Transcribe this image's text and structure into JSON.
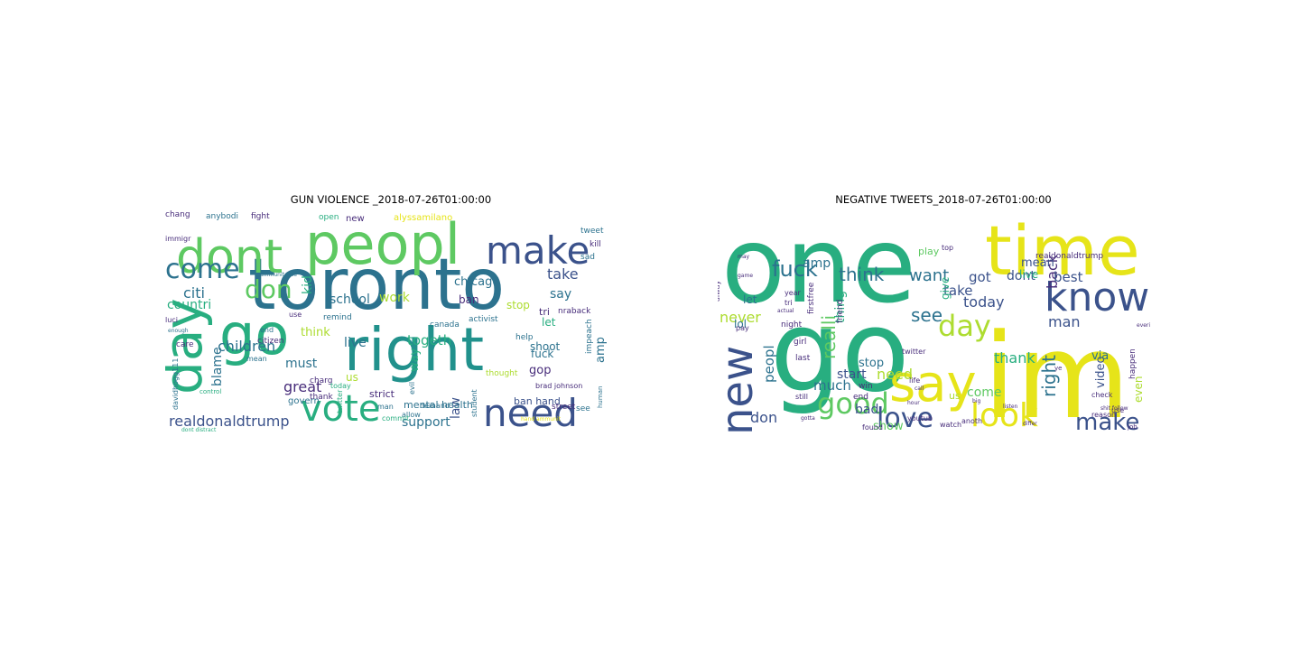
{
  "colors": {
    "purple": "#472c7a",
    "indigo": "#3b528b",
    "blue": "#2c728e",
    "teal": "#21918c",
    "green": "#28ae80",
    "lightgreen": "#5ec962",
    "lime": "#addc30",
    "yellow": "#e6e419"
  },
  "chart_data": [
    {
      "type": "wordcloud",
      "title": "GUN VIOLENCE _2018-07-26T01:00:00",
      "words": [
        {
          "text": "toronto",
          "weight": 100,
          "color": "blue"
        },
        {
          "text": "right",
          "weight": 78,
          "color": "teal"
        },
        {
          "text": "go",
          "weight": 62,
          "color": "green"
        },
        {
          "text": "peopl",
          "weight": 60,
          "color": "lightgreen"
        },
        {
          "text": "dont",
          "weight": 56,
          "color": "lightgreen"
        },
        {
          "text": "day",
          "weight": 52,
          "color": "green"
        },
        {
          "text": "make",
          "weight": 48,
          "color": "indigo"
        },
        {
          "text": "need",
          "weight": 46,
          "color": "indigo"
        },
        {
          "text": "vote",
          "weight": 44,
          "color": "green"
        },
        {
          "text": "come",
          "weight": 34,
          "color": "blue"
        },
        {
          "text": "don",
          "weight": 30,
          "color": "lightgreen"
        },
        {
          "text": "realdonaldtrump",
          "weight": 20,
          "color": "indigo"
        },
        {
          "text": "support",
          "weight": 18,
          "color": "blue"
        },
        {
          "text": "children",
          "weight": 18,
          "color": "blue"
        },
        {
          "text": "school",
          "weight": 16,
          "color": "blue"
        },
        {
          "text": "take",
          "weight": 16,
          "color": "indigo"
        },
        {
          "text": "say",
          "weight": 16,
          "color": "blue"
        },
        {
          "text": "citi",
          "weight": 15,
          "color": "blue"
        },
        {
          "text": "countri",
          "weight": 15,
          "color": "green"
        },
        {
          "text": "work",
          "weight": 14,
          "color": "lime"
        },
        {
          "text": "chicago",
          "weight": 14,
          "color": "blue"
        },
        {
          "text": "blame",
          "weight": 14,
          "color": "blue"
        },
        {
          "text": "kid",
          "weight": 14,
          "color": "green"
        },
        {
          "text": "live",
          "weight": 14,
          "color": "blue"
        },
        {
          "text": "think",
          "weight": 14,
          "color": "lime"
        },
        {
          "text": "togeth",
          "weight": 14,
          "color": "green"
        },
        {
          "text": "great",
          "weight": 14,
          "color": "purple"
        },
        {
          "text": "must",
          "weight": 13,
          "color": "blue"
        },
        {
          "text": "gop",
          "weight": 13,
          "color": "purple"
        },
        {
          "text": "way",
          "weight": 13,
          "color": "green"
        },
        {
          "text": "fuck",
          "weight": 12,
          "color": "blue"
        },
        {
          "text": "law",
          "weight": 13,
          "color": "indigo"
        },
        {
          "text": "amp",
          "weight": 13,
          "color": "blue"
        },
        {
          "text": "shoot",
          "weight": 12,
          "color": "blue"
        },
        {
          "text": "ban hand",
          "weight": 11,
          "color": "indigo"
        },
        {
          "text": "mental health",
          "weight": 11,
          "color": "blue"
        },
        {
          "text": "stop",
          "weight": 12,
          "color": "lime"
        },
        {
          "text": "ban",
          "weight": 12,
          "color": "purple"
        },
        {
          "text": "let",
          "weight": 12,
          "color": "green"
        },
        {
          "text": "tri",
          "weight": 11,
          "color": "purple"
        },
        {
          "text": "us",
          "weight": 12,
          "color": "lime"
        },
        {
          "text": "strict",
          "weight": 11,
          "color": "purple"
        },
        {
          "text": "govern",
          "weight": 10,
          "color": "blue"
        },
        {
          "text": "alyssamilano",
          "weight": 10,
          "color": "yellow"
        },
        {
          "text": "new",
          "weight": 10,
          "color": "purple"
        },
        {
          "text": "open",
          "weight": 9,
          "color": "green"
        },
        {
          "text": "anybodi",
          "weight": 9,
          "color": "blue"
        },
        {
          "text": "fight",
          "weight": 9,
          "color": "purple"
        },
        {
          "text": "chang",
          "weight": 9,
          "color": "purple"
        },
        {
          "text": "tweet",
          "weight": 9,
          "color": "blue"
        },
        {
          "text": "kill",
          "weight": 9,
          "color": "purple"
        },
        {
          "text": "sad",
          "weight": 9,
          "color": "blue"
        },
        {
          "text": "nraback",
          "weight": 9,
          "color": "purple"
        },
        {
          "text": "canada",
          "weight": 9,
          "color": "blue"
        },
        {
          "text": "activist",
          "weight": 9,
          "color": "blue"
        },
        {
          "text": "remind",
          "weight": 9,
          "color": "blue"
        },
        {
          "text": "help",
          "weight": 9,
          "color": "blue"
        },
        {
          "text": "impeach",
          "weight": 9,
          "color": "blue"
        },
        {
          "text": "thought",
          "weight": 9,
          "color": "lime"
        },
        {
          "text": "brad johnson",
          "weight": 8,
          "color": "purple"
        },
        {
          "text": "see",
          "weight": 9,
          "color": "blue"
        },
        {
          "text": "street",
          "weight": 9,
          "color": "purple"
        },
        {
          "text": "student",
          "weight": 8,
          "color": "blue"
        },
        {
          "text": "allow",
          "weight": 8,
          "color": "blue"
        },
        {
          "text": "demand",
          "weight": 8,
          "color": "blue"
        },
        {
          "text": "evil",
          "weight": 8,
          "color": "blue"
        },
        {
          "text": "charg",
          "weight": 9,
          "color": "purple"
        },
        {
          "text": "thank",
          "weight": 9,
          "color": "purple"
        },
        {
          "text": "citizen",
          "weight": 9,
          "color": "purple"
        },
        {
          "text": "care",
          "weight": 9,
          "color": "purple"
        },
        {
          "text": "mean",
          "weight": 8,
          "color": "blue"
        },
        {
          "text": "end",
          "weight": 8,
          "color": "blue"
        },
        {
          "text": "use",
          "weight": 8,
          "color": "purple"
        },
        {
          "text": "luci",
          "weight": 8,
          "color": "purple"
        },
        {
          "text": "immigr",
          "weight": 8,
          "color": "purple"
        },
        {
          "text": "davidhogg111",
          "weight": 8,
          "color": "blue"
        },
        {
          "text": "twitter",
          "weight": 8,
          "color": "green"
        },
        {
          "text": "today",
          "weight": 8,
          "color": "green"
        },
        {
          "text": "commit",
          "weight": 8,
          "color": "green"
        },
        {
          "text": "man",
          "weight": 8,
          "color": "blue"
        },
        {
          "text": "dont distract",
          "weight": 6,
          "color": "green"
        },
        {
          "text": "hand ammunit",
          "weight": 6,
          "color": "yellow"
        },
        {
          "text": "human",
          "weight": 7,
          "color": "blue"
        },
        {
          "text": "control",
          "weight": 7,
          "color": "green"
        },
        {
          "text": "ammunit sale",
          "weight": 6,
          "color": "blue"
        },
        {
          "text": "enough",
          "weight": 6,
          "color": "blue"
        },
        {
          "text": "know",
          "weight": 6,
          "color": "lime"
        }
      ]
    },
    {
      "type": "wordcloud",
      "title": "NEGATIVE TWEETS_2018-07-26T01:00:00",
      "words": [
        {
          "text": "one",
          "weight": 100,
          "color": "green"
        },
        {
          "text": "im",
          "weight": 96,
          "color": "yellow"
        },
        {
          "text": "go",
          "weight": 88,
          "color": "green"
        },
        {
          "text": "time",
          "weight": 70,
          "color": "yellow"
        },
        {
          "text": "say",
          "weight": 52,
          "color": "yellow"
        },
        {
          "text": "know",
          "weight": 40,
          "color": "indigo"
        },
        {
          "text": "new",
          "weight": 40,
          "color": "indigo"
        },
        {
          "text": "look",
          "weight": 34,
          "color": "yellow"
        },
        {
          "text": "day",
          "weight": 32,
          "color": "lime"
        },
        {
          "text": "good",
          "weight": 30,
          "color": "lightgreen"
        },
        {
          "text": "love",
          "weight": 30,
          "color": "indigo"
        },
        {
          "text": "make",
          "weight": 26,
          "color": "indigo"
        },
        {
          "text": "fuck",
          "weight": 20,
          "color": "blue"
        },
        {
          "text": "think",
          "weight": 18,
          "color": "blue"
        },
        {
          "text": "want",
          "weight": 16,
          "color": "blue"
        },
        {
          "text": "see",
          "weight": 18,
          "color": "blue"
        },
        {
          "text": "right",
          "weight": 18,
          "color": "blue"
        },
        {
          "text": "realli",
          "weight": 16,
          "color": "lightgreen"
        },
        {
          "text": "man",
          "weight": 16,
          "color": "indigo"
        },
        {
          "text": "don",
          "weight": 16,
          "color": "indigo"
        },
        {
          "text": "need",
          "weight": 15,
          "color": "lime"
        },
        {
          "text": "today",
          "weight": 14,
          "color": "indigo"
        },
        {
          "text": "thank",
          "weight": 15,
          "color": "green"
        },
        {
          "text": "back",
          "weight": 14,
          "color": "purple"
        },
        {
          "text": "take",
          "weight": 14,
          "color": "indigo"
        },
        {
          "text": "got",
          "weight": 14,
          "color": "indigo"
        },
        {
          "text": "best",
          "weight": 14,
          "color": "indigo"
        },
        {
          "text": "mean",
          "weight": 13,
          "color": "indigo"
        },
        {
          "text": "dont",
          "weight": 13,
          "color": "indigo"
        },
        {
          "text": "amp",
          "weight": 12,
          "color": "blue"
        },
        {
          "text": "thing",
          "weight": 12,
          "color": "green"
        },
        {
          "text": "never",
          "weight": 13,
          "color": "lime"
        },
        {
          "text": "peopl",
          "weight": 13,
          "color": "blue"
        },
        {
          "text": "much",
          "weight": 13,
          "color": "blue"
        },
        {
          "text": "start",
          "weight": 13,
          "color": "indigo"
        },
        {
          "text": "show",
          "weight": 12,
          "color": "lightgreen"
        },
        {
          "text": "come",
          "weight": 12,
          "color": "lightgreen"
        },
        {
          "text": "stop",
          "weight": 12,
          "color": "blue"
        },
        {
          "text": "bad",
          "weight": 12,
          "color": "indigo"
        },
        {
          "text": "video",
          "weight": 12,
          "color": "indigo"
        },
        {
          "text": "via",
          "weight": 12,
          "color": "blue"
        },
        {
          "text": "even",
          "weight": 11,
          "color": "lime"
        },
        {
          "text": "live",
          "weight": 11,
          "color": "green"
        },
        {
          "text": "give",
          "weight": 11,
          "color": "green"
        },
        {
          "text": "let",
          "weight": 11,
          "color": "blue"
        },
        {
          "text": "lol",
          "weight": 11,
          "color": "blue"
        },
        {
          "text": "play",
          "weight": 10,
          "color": "lightgreen"
        },
        {
          "text": "us",
          "weight": 10,
          "color": "lime"
        },
        {
          "text": "firstfree",
          "weight": 8,
          "color": "purple"
        },
        {
          "text": "friend",
          "weight": 8,
          "color": "purple"
        },
        {
          "text": "realdonaldtrump",
          "weight": 8,
          "color": "purple"
        },
        {
          "text": "happen",
          "weight": 8,
          "color": "purple"
        },
        {
          "text": "check",
          "weight": 8,
          "color": "purple"
        },
        {
          "text": "reason",
          "weight": 8,
          "color": "purple"
        },
        {
          "text": "anoth",
          "weight": 8,
          "color": "purple"
        },
        {
          "text": "watch",
          "weight": 8,
          "color": "purple"
        },
        {
          "text": "found",
          "weight": 8,
          "color": "purple"
        },
        {
          "text": "youtub",
          "weight": 8,
          "color": "purple"
        },
        {
          "text": "twitter",
          "weight": 8,
          "color": "purple"
        },
        {
          "text": "win",
          "weight": 8,
          "color": "purple"
        },
        {
          "text": "end",
          "weight": 8,
          "color": "purple"
        },
        {
          "text": "last",
          "weight": 8,
          "color": "purple"
        },
        {
          "text": "girl",
          "weight": 8,
          "color": "purple"
        },
        {
          "text": "night",
          "weight": 8,
          "color": "purple"
        },
        {
          "text": "pay",
          "weight": 8,
          "color": "purple"
        },
        {
          "text": "alway",
          "weight": 8,
          "color": "purple"
        },
        {
          "text": "year",
          "weight": 7,
          "color": "purple"
        },
        {
          "text": "tri",
          "weight": 7,
          "color": "purple"
        },
        {
          "text": "still",
          "weight": 7,
          "color": "purple"
        },
        {
          "text": "life",
          "weight": 7,
          "color": "purple"
        },
        {
          "text": "top",
          "weight": 7,
          "color": "purple"
        },
        {
          "text": "use",
          "weight": 7,
          "color": "purple"
        },
        {
          "text": "job",
          "weight": 6,
          "color": "purple"
        },
        {
          "text": "differ",
          "weight": 6,
          "color": "purple"
        },
        {
          "text": "ye",
          "weight": 6,
          "color": "purple"
        },
        {
          "text": "shit follow",
          "weight": 6,
          "color": "purple"
        },
        {
          "text": "everi",
          "weight": 6,
          "color": "purple"
        },
        {
          "text": "actual",
          "weight": 6,
          "color": "purple"
        },
        {
          "text": "may",
          "weight": 6,
          "color": "purple"
        },
        {
          "text": "big",
          "weight": 6,
          "color": "purple"
        },
        {
          "text": "game",
          "weight": 6,
          "color": "purple"
        },
        {
          "text": "gotta",
          "weight": 5,
          "color": "purple"
        },
        {
          "text": "listen",
          "weight": 5,
          "color": "purple"
        },
        {
          "text": "hour",
          "weight": 5,
          "color": "purple"
        },
        {
          "text": "call",
          "weight": 5,
          "color": "purple"
        }
      ]
    }
  ]
}
